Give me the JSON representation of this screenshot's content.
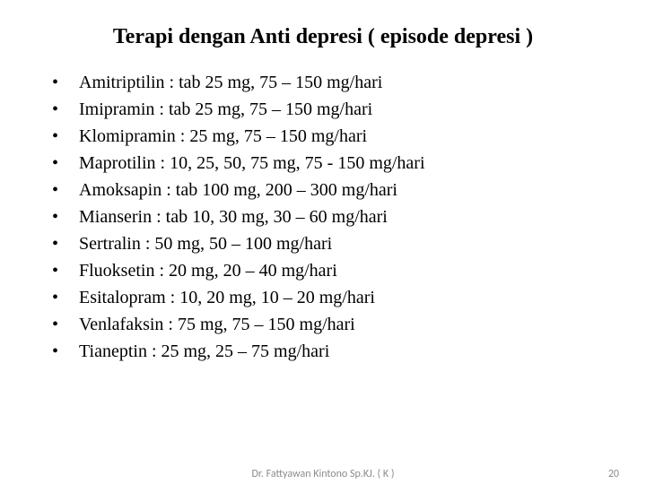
{
  "title": "Terapi  dengan Anti depresi ( episode depresi )",
  "items": [
    "Amitriptilin : tab 25 mg, 75 – 150 mg/hari",
    "Imipramin : tab 25 mg, 75 – 150 mg/hari",
    "Klomipramin : 25 mg, 75 – 150 mg/hari",
    "Maprotilin : 10, 25, 50, 75 mg, 75 - 150 mg/hari",
    "Amoksapin : tab 100 mg, 200 – 300 mg/hari",
    "Mianserin : tab 10, 30 mg, 30 – 60 mg/hari",
    "Sertralin : 50 mg, 50 – 100 mg/hari",
    "Fluoksetin : 20 mg, 20 – 40 mg/hari",
    "Esitalopram : 10, 20 mg, 10 – 20 mg/hari",
    "Venlafaksin : 75 mg, 75 – 150 mg/hari",
    "Tianeptin : 25 mg, 25 – 75 mg/hari"
  ],
  "bullet_char": "•",
  "footer": {
    "author": "Dr. Fattyawan Kintono Sp.KJ. ( K )",
    "page": "20"
  },
  "style": {
    "title_fontsize": 24,
    "item_fontsize": 20,
    "footer_fontsize": 12,
    "text_color": "#000000",
    "footer_color": "#8b8b8b",
    "background_color": "#ffffff"
  }
}
